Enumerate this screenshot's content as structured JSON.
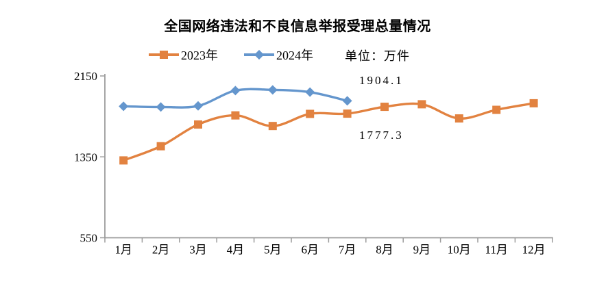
{
  "title": "全国网络违法和不良信息举报受理总量情况",
  "unit_label": "单位：万件",
  "legend": {
    "items": [
      {
        "label": "2023年",
        "color": "#E28240",
        "marker": "square"
      },
      {
        "label": "2024年",
        "color": "#6496CD",
        "marker": "diamond"
      }
    ]
  },
  "chart_data": {
    "type": "line",
    "title": "全国网络违法和不良信息举报受理总量情况",
    "unit": "万件",
    "line_style": "smooth",
    "grid": false,
    "legend_position": "top",
    "categories": [
      "1月",
      "2月",
      "3月",
      "4月",
      "5月",
      "6月",
      "7月",
      "8月",
      "9月",
      "10月",
      "11月",
      "12月"
    ],
    "series": [
      {
        "name": "2023年",
        "color": "#E28240",
        "marker": "square",
        "values": [
          1315,
          1455,
          1670,
          1760,
          1655,
          1775,
          1777.3,
          1845,
          1870,
          1730,
          1815,
          1880
        ]
      },
      {
        "name": "2024年",
        "color": "#6496CD",
        "marker": "diamond",
        "values": [
          1850,
          1843,
          1854,
          2005,
          2012,
          1990,
          1904.1
        ]
      }
    ],
    "yticks": [
      2150,
      1350,
      550
    ],
    "ylim": [
      550,
      2150
    ],
    "annotations": [
      {
        "text": "1904.1",
        "series": "2024年",
        "category": "7月"
      },
      {
        "text": "1777.3",
        "series": "2023年",
        "category": "7月"
      }
    ]
  },
  "colors": {
    "axis": "#9b9b9b",
    "text": "#000000",
    "background": "#ffffff"
  }
}
